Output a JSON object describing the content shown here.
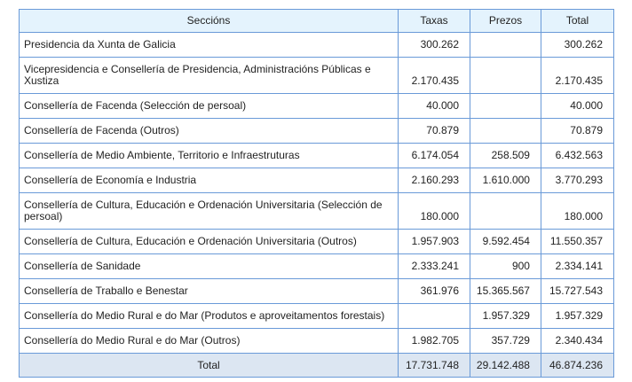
{
  "table": {
    "headers": [
      "Seccións",
      "Taxas",
      "Prezos",
      "Total"
    ],
    "rows": [
      {
        "seccion": "Presidencia da Xunta de Galicia",
        "taxas": "300.262",
        "prezos": "",
        "total": "300.262"
      },
      {
        "seccion": "Vicepresidencia e Consellería de Presidencia, Administracións Públicas e Xustiza",
        "taxas": "2.170.435",
        "prezos": "",
        "total": "2.170.435"
      },
      {
        "seccion": "Consellería de Facenda (Selección de persoal)",
        "taxas": "40.000",
        "prezos": "",
        "total": "40.000"
      },
      {
        "seccion": "Consellería de Facenda (Outros)",
        "taxas": "70.879",
        "prezos": "",
        "total": "70.879"
      },
      {
        "seccion": "Consellería de Medio Ambiente, Territorio e Infraestruturas",
        "taxas": "6.174.054",
        "prezos": "258.509",
        "total": "6.432.563"
      },
      {
        "seccion": "Consellería de Economía e Industria",
        "taxas": "2.160.293",
        "prezos": "1.610.000",
        "total": "3.770.293"
      },
      {
        "seccion": "Consellería de Cultura, Educación e Ordenación Universitaria (Selección de persoal)",
        "taxas": "180.000",
        "prezos": "",
        "total": "180.000"
      },
      {
        "seccion": "Consellería de Cultura, Educación e Ordenación Universitaria (Outros)",
        "taxas": "1.957.903",
        "prezos": "9.592.454",
        "total": "11.550.357"
      },
      {
        "seccion": "Consellería de Sanidade",
        "taxas": "2.333.241",
        "prezos": "900",
        "total": "2.334.141"
      },
      {
        "seccion": "Consellería de Traballo e Benestar",
        "taxas": "361.976",
        "prezos": "15.365.567",
        "total": "15.727.543"
      },
      {
        "seccion": "Consellería do Medio Rural e do Mar (Produtos e aproveitamentos forestais)",
        "taxas": "",
        "prezos": "1.957.329",
        "total": "1.957.329"
      },
      {
        "seccion": "Consellería do Medio Rural e do Mar (Outros)",
        "taxas": "1.982.705",
        "prezos": "357.729",
        "total": "2.340.434"
      }
    ],
    "total_row": {
      "label": "Total",
      "taxas": "17.731.748",
      "prezos": "29.142.488",
      "total": "46.874.236"
    }
  }
}
